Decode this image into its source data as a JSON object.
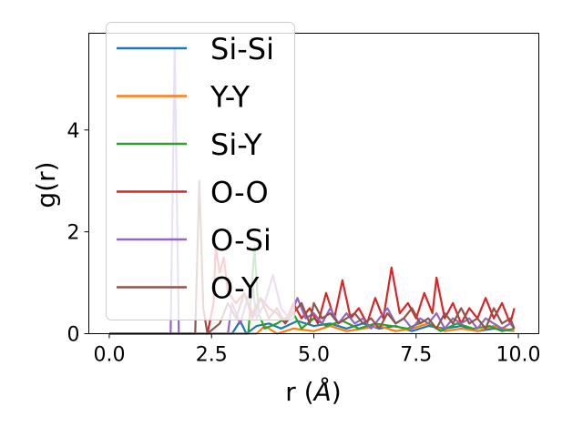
{
  "chart_data": {
    "type": "line",
    "xlabel": "r (",
    "xlabel_unit": "Å",
    "xlabel_close": ")",
    "ylabel": "g(r)",
    "xlim": [
      -0.5,
      10.5
    ],
    "ylim": [
      0,
      5.9
    ],
    "x_ticks": [
      0.0,
      2.5,
      5.0,
      7.5,
      10.0
    ],
    "x_tick_labels": [
      "0.0",
      "2.5",
      "5.0",
      "7.5",
      "10.0"
    ],
    "y_ticks": [
      0,
      2,
      4
    ],
    "y_tick_labels": [
      "0",
      "2",
      "4"
    ],
    "grid": false,
    "legend_position": "top-left",
    "series": [
      {
        "name": "Si-Si",
        "color": "#1f77b4",
        "points": [
          [
            0,
            0
          ],
          [
            3.0,
            0
          ],
          [
            3.2,
            0.25
          ],
          [
            3.35,
            0
          ],
          [
            3.6,
            0.15
          ],
          [
            3.9,
            0.2
          ],
          [
            4.2,
            0.1
          ],
          [
            4.6,
            0.25
          ],
          [
            5.0,
            0.15
          ],
          [
            5.4,
            0.2
          ],
          [
            5.8,
            0.1
          ],
          [
            6.2,
            0.2
          ],
          [
            6.6,
            0.1
          ],
          [
            7.0,
            0.15
          ],
          [
            7.4,
            0.05
          ],
          [
            7.8,
            0.15
          ],
          [
            8.2,
            0.1
          ],
          [
            8.6,
            0.15
          ],
          [
            9.0,
            0.05
          ],
          [
            9.4,
            0.1
          ],
          [
            9.9,
            0.05
          ]
        ]
      },
      {
        "name": "Y-Y",
        "color": "#ff7f0e",
        "points": [
          [
            0,
            0
          ],
          [
            3.6,
            0
          ],
          [
            3.8,
            0.15
          ],
          [
            4.1,
            0
          ],
          [
            4.5,
            0.1
          ],
          [
            5.0,
            0.05
          ],
          [
            5.4,
            0.15
          ],
          [
            5.8,
            0.05
          ],
          [
            6.2,
            0.1
          ],
          [
            6.6,
            0.15
          ],
          [
            7.0,
            0.05
          ],
          [
            7.4,
            0.1
          ],
          [
            7.8,
            0.2
          ],
          [
            8.2,
            0.05
          ],
          [
            8.6,
            0.1
          ],
          [
            9.0,
            0.05
          ],
          [
            9.4,
            0.15
          ],
          [
            9.9,
            0.05
          ]
        ]
      },
      {
        "name": "Si-Y",
        "color": "#2ca02c",
        "points": [
          [
            0,
            0
          ],
          [
            3.4,
            0
          ],
          [
            3.55,
            1.7
          ],
          [
            3.65,
            0.4
          ],
          [
            3.8,
            0.1
          ],
          [
            4.1,
            0.2
          ],
          [
            4.5,
            0.4
          ],
          [
            4.7,
            0.1
          ],
          [
            5.0,
            0.3
          ],
          [
            5.3,
            0.15
          ],
          [
            5.7,
            0.25
          ],
          [
            6.1,
            0.1
          ],
          [
            6.5,
            0.2
          ],
          [
            6.9,
            0.15
          ],
          [
            7.3,
            0.1
          ],
          [
            7.7,
            0.25
          ],
          [
            8.1,
            0.05
          ],
          [
            8.5,
            0.2
          ],
          [
            8.9,
            0.1
          ],
          [
            9.3,
            0.15
          ],
          [
            9.6,
            0.05
          ],
          [
            9.9,
            0.1
          ]
        ]
      },
      {
        "name": "O-O",
        "color": "#d62728",
        "points": [
          [
            0,
            0
          ],
          [
            2.4,
            0
          ],
          [
            2.55,
            0.6
          ],
          [
            2.6,
            1.7
          ],
          [
            2.7,
            1.2
          ],
          [
            2.8,
            1.5
          ],
          [
            2.9,
            0.8
          ],
          [
            3.1,
            0.6
          ],
          [
            3.3,
            0.8
          ],
          [
            3.5,
            0.3
          ],
          [
            3.7,
            0.7
          ],
          [
            3.9,
            0.5
          ],
          [
            4.1,
            0.4
          ],
          [
            4.3,
            0.2
          ],
          [
            4.5,
            0.6
          ],
          [
            4.7,
            0.3
          ],
          [
            4.9,
            0.5
          ],
          [
            5.1,
            0.2
          ],
          [
            5.3,
            0.8
          ],
          [
            5.5,
            0.3
          ],
          [
            5.7,
            1.05
          ],
          [
            5.9,
            0.3
          ],
          [
            6.1,
            0.5
          ],
          [
            6.3,
            0.2
          ],
          [
            6.5,
            0.7
          ],
          [
            6.7,
            0.3
          ],
          [
            6.9,
            1.3
          ],
          [
            7.1,
            0.4
          ],
          [
            7.3,
            0.6
          ],
          [
            7.5,
            0.3
          ],
          [
            7.7,
            0.8
          ],
          [
            7.9,
            0.4
          ],
          [
            8.0,
            1.1
          ],
          [
            8.2,
            0.3
          ],
          [
            8.4,
            0.6
          ],
          [
            8.6,
            0.2
          ],
          [
            8.8,
            0.5
          ],
          [
            9.0,
            0.3
          ],
          [
            9.2,
            0.7
          ],
          [
            9.4,
            0.3
          ],
          [
            9.6,
            0.6
          ],
          [
            9.8,
            0.2
          ],
          [
            9.9,
            0.5
          ]
        ]
      },
      {
        "name": "O-Si",
        "color": "#9467bd",
        "points": [
          [
            0,
            0
          ],
          [
            1.5,
            0
          ],
          [
            1.6,
            5.6
          ],
          [
            1.7,
            0
          ],
          [
            2.9,
            0
          ],
          [
            3.0,
            0.6
          ],
          [
            3.2,
            0.2
          ],
          [
            3.5,
            1.0
          ],
          [
            3.6,
            0.3
          ],
          [
            3.8,
            0.6
          ],
          [
            4.0,
            1.15
          ],
          [
            4.2,
            0.5
          ],
          [
            4.4,
            0.3
          ],
          [
            4.6,
            0.7
          ],
          [
            4.8,
            0.3
          ],
          [
            5.0,
            0.4
          ],
          [
            5.2,
            0.2
          ],
          [
            5.4,
            0.5
          ],
          [
            5.6,
            0.2
          ],
          [
            5.8,
            0.4
          ],
          [
            6.0,
            0.2
          ],
          [
            6.2,
            0.3
          ],
          [
            6.4,
            0.1
          ],
          [
            6.6,
            0.3
          ],
          [
            6.8,
            0.5
          ],
          [
            7.0,
            0.2
          ],
          [
            7.2,
            0.3
          ],
          [
            7.4,
            0.1
          ],
          [
            7.6,
            0.3
          ],
          [
            7.8,
            0.2
          ],
          [
            8.0,
            0.4
          ],
          [
            8.2,
            0.1
          ],
          [
            8.4,
            0.3
          ],
          [
            8.6,
            0.2
          ],
          [
            8.8,
            0.3
          ],
          [
            9.0,
            0.1
          ],
          [
            9.2,
            0.3
          ],
          [
            9.4,
            0.2
          ],
          [
            9.6,
            0.1
          ],
          [
            9.8,
            0.2
          ],
          [
            9.9,
            0.1
          ]
        ]
      },
      {
        "name": "O-Y",
        "color": "#8c564b",
        "points": [
          [
            0,
            0
          ],
          [
            2.1,
            0
          ],
          [
            2.2,
            3.0
          ],
          [
            2.3,
            0.5
          ],
          [
            2.4,
            0
          ],
          [
            2.7,
            0.2
          ],
          [
            2.9,
            0.6
          ],
          [
            3.1,
            0.3
          ],
          [
            3.3,
            0.8
          ],
          [
            3.5,
            0.4
          ],
          [
            3.7,
            0.7
          ],
          [
            3.9,
            0.3
          ],
          [
            4.1,
            0.5
          ],
          [
            4.3,
            0.2
          ],
          [
            4.5,
            0.4
          ],
          [
            4.7,
            0.6
          ],
          [
            4.9,
            0.2
          ],
          [
            5.0,
            0.6
          ],
          [
            5.2,
            0.3
          ],
          [
            5.4,
            0.4
          ],
          [
            5.6,
            0.2
          ],
          [
            5.8,
            0.3
          ],
          [
            6.0,
            0.4
          ],
          [
            6.2,
            0.2
          ],
          [
            6.4,
            0.3
          ],
          [
            6.6,
            0.1
          ],
          [
            6.8,
            0.4
          ],
          [
            7.0,
            0.2
          ],
          [
            7.2,
            0.3
          ],
          [
            7.4,
            0.5
          ],
          [
            7.6,
            0.2
          ],
          [
            7.8,
            0.3
          ],
          [
            8.0,
            0.1
          ],
          [
            8.2,
            0.4
          ],
          [
            8.4,
            0.2
          ],
          [
            8.6,
            0.5
          ],
          [
            8.8,
            0.2
          ],
          [
            9.0,
            0.3
          ],
          [
            9.2,
            0.1
          ],
          [
            9.4,
            0.5
          ],
          [
            9.6,
            0.2
          ],
          [
            9.8,
            0.3
          ],
          [
            9.9,
            0.1
          ]
        ]
      }
    ]
  }
}
